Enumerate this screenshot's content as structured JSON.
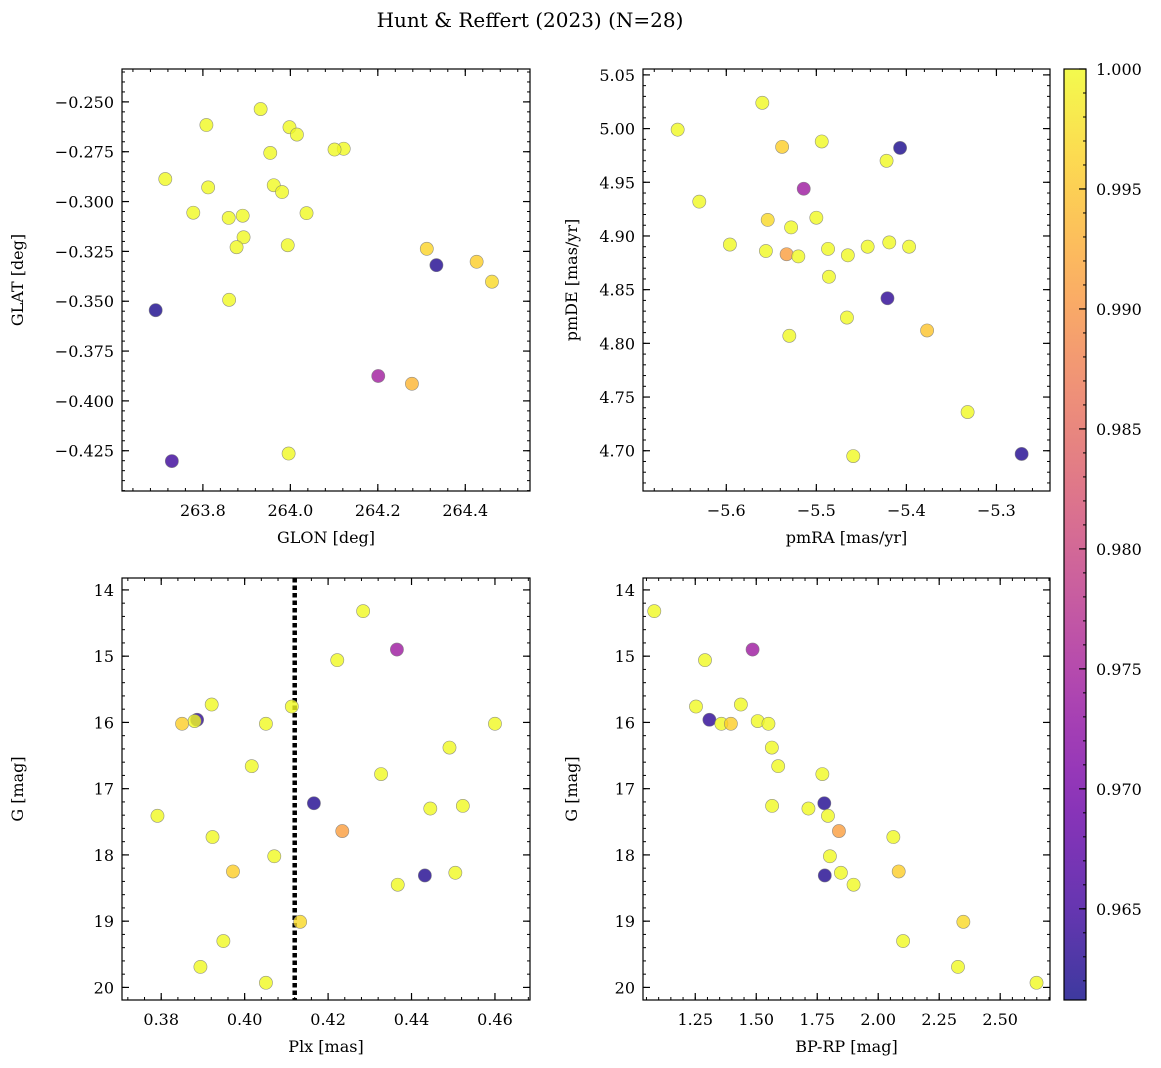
{
  "figure": {
    "title": "Hunt & Reffert (2023) (N=28)"
  },
  "colormap": {
    "name": "plasma",
    "stops": [
      "#0d0887",
      "#46039f",
      "#7201a8",
      "#9c179e",
      "#bd3786",
      "#d8576b",
      "#ed7953",
      "#fb9f3a",
      "#fdca26",
      "#f0f921"
    ],
    "alpha": 0.8,
    "vmin": 0.9612,
    "vmax": 1.0,
    "ticks": [
      0.965,
      0.97,
      0.975,
      0.98,
      0.985,
      0.99,
      0.995,
      1.0
    ],
    "tick_labels": [
      "0.965",
      "0.970",
      "0.975",
      "0.980",
      "0.985",
      "0.990",
      "0.995",
      "1.000"
    ]
  },
  "chart_data": [
    {
      "type": "scatter",
      "id": "glon-glat",
      "xlabel": "GLON [deg]",
      "ylabel": "GLAT [deg]",
      "xlim": [
        263.615,
        264.548
      ],
      "ylim": [
        -0.4452,
        -0.2335
      ],
      "invert_y": false,
      "xticks": [
        263.8,
        264.0,
        264.2,
        264.4
      ],
      "xtick_labels": [
        "263.8",
        "264.0",
        "264.2",
        "264.4"
      ],
      "yticks": [
        -0.25,
        -0.275,
        -0.3,
        -0.325,
        -0.35,
        -0.375,
        -0.4,
        -0.425
      ],
      "ytick_labels": [
        "−0.250",
        "−0.275",
        "−0.300",
        "−0.325",
        "−0.350",
        "−0.375",
        "−0.400",
        "−0.425"
      ],
      "points": [
        {
          "x": 263.932,
          "y": -0.2536,
          "c": 1.0
        },
        {
          "x": 263.808,
          "y": -0.2616,
          "c": 1.0
        },
        {
          "x": 263.998,
          "y": -0.2627,
          "c": 1.0
        },
        {
          "x": 264.015,
          "y": -0.2664,
          "c": 1.0
        },
        {
          "x": 264.122,
          "y": -0.2735,
          "c": 1.0
        },
        {
          "x": 264.101,
          "y": -0.2739,
          "c": 1.0
        },
        {
          "x": 263.954,
          "y": -0.2756,
          "c": 1.0
        },
        {
          "x": 263.714,
          "y": -0.2887,
          "c": 1.0
        },
        {
          "x": 263.962,
          "y": -0.2918,
          "c": 1.0
        },
        {
          "x": 263.812,
          "y": -0.2929,
          "c": 1.0
        },
        {
          "x": 263.981,
          "y": -0.2952,
          "c": 1.0
        },
        {
          "x": 263.778,
          "y": -0.3056,
          "c": 1.0
        },
        {
          "x": 264.037,
          "y": -0.3058,
          "c": 1.0
        },
        {
          "x": 263.891,
          "y": -0.3071,
          "c": 1.0
        },
        {
          "x": 263.859,
          "y": -0.3082,
          "c": 1.0
        },
        {
          "x": 263.893,
          "y": -0.3179,
          "c": 1.0
        },
        {
          "x": 263.994,
          "y": -0.3219,
          "c": 1.0
        },
        {
          "x": 263.877,
          "y": -0.3229,
          "c": 1.0
        },
        {
          "x": 264.312,
          "y": -0.3237,
          "c": 0.9965
        },
        {
          "x": 264.334,
          "y": -0.3319,
          "c": 0.9625
        },
        {
          "x": 264.426,
          "y": -0.3302,
          "c": 0.996
        },
        {
          "x": 264.461,
          "y": -0.3402,
          "c": 0.997
        },
        {
          "x": 263.86,
          "y": -0.3493,
          "c": 1.0
        },
        {
          "x": 263.692,
          "y": -0.3545,
          "c": 0.962
        },
        {
          "x": 264.201,
          "y": -0.3875,
          "c": 0.9745
        },
        {
          "x": 264.278,
          "y": -0.3914,
          "c": 0.9935
        },
        {
          "x": 263.996,
          "y": -0.4264,
          "c": 1.0
        },
        {
          "x": 263.729,
          "y": -0.4302,
          "c": 0.9645
        }
      ]
    },
    {
      "type": "scatter",
      "id": "pmra-pmde",
      "xlabel": "pmRA [mas/yr]",
      "ylabel": "pmDE [mas/yr]",
      "xlim": [
        -5.6925,
        -5.2405
      ],
      "ylim": [
        4.6625,
        5.0555
      ],
      "invert_y": false,
      "xticks": [
        -5.6,
        -5.5,
        -5.4,
        -5.3
      ],
      "xtick_labels": [
        "−5.6",
        "−5.5",
        "−5.4",
        "−5.3"
      ],
      "yticks": [
        4.7,
        4.75,
        4.8,
        4.85,
        4.9,
        4.95,
        5.0,
        5.05
      ],
      "ytick_labels": [
        "4.70",
        "4.75",
        "4.80",
        "4.85",
        "4.90",
        "4.95",
        "5.00",
        "5.05"
      ],
      "points": [
        {
          "x": -5.56,
          "y": 5.024,
          "c": 1.0
        },
        {
          "x": -5.654,
          "y": 4.999,
          "c": 1.0
        },
        {
          "x": -5.494,
          "y": 4.988,
          "c": 1.0
        },
        {
          "x": -5.538,
          "y": 4.983,
          "c": 0.996
        },
        {
          "x": -5.407,
          "y": 4.982,
          "c": 0.962
        },
        {
          "x": -5.422,
          "y": 4.97,
          "c": 1.0
        },
        {
          "x": -5.514,
          "y": 4.944,
          "c": 0.974
        },
        {
          "x": -5.63,
          "y": 4.932,
          "c": 1.0
        },
        {
          "x": -5.554,
          "y": 4.915,
          "c": 0.997
        },
        {
          "x": -5.5,
          "y": 4.917,
          "c": 1.0
        },
        {
          "x": -5.528,
          "y": 4.908,
          "c": 1.0
        },
        {
          "x": -5.419,
          "y": 4.894,
          "c": 1.0
        },
        {
          "x": -5.596,
          "y": 4.892,
          "c": 1.0
        },
        {
          "x": -5.397,
          "y": 4.89,
          "c": 1.0
        },
        {
          "x": -5.443,
          "y": 4.89,
          "c": 1.0
        },
        {
          "x": -5.487,
          "y": 4.888,
          "c": 1.0
        },
        {
          "x": -5.556,
          "y": 4.886,
          "c": 1.0
        },
        {
          "x": -5.533,
          "y": 4.883,
          "c": 0.991
        },
        {
          "x": -5.465,
          "y": 4.882,
          "c": 1.0
        },
        {
          "x": -5.52,
          "y": 4.881,
          "c": 1.0
        },
        {
          "x": -5.486,
          "y": 4.862,
          "c": 1.0
        },
        {
          "x": -5.421,
          "y": 4.842,
          "c": 0.9635
        },
        {
          "x": -5.466,
          "y": 4.824,
          "c": 1.0
        },
        {
          "x": -5.377,
          "y": 4.812,
          "c": 0.995
        },
        {
          "x": -5.53,
          "y": 4.807,
          "c": 1.0
        },
        {
          "x": -5.332,
          "y": 4.736,
          "c": 1.0
        },
        {
          "x": -5.272,
          "y": 4.697,
          "c": 0.9625
        },
        {
          "x": -5.459,
          "y": 4.695,
          "c": 1.0
        }
      ]
    },
    {
      "type": "scatter",
      "id": "plx-g",
      "xlabel": "Plx [mas]",
      "ylabel": "G [mag]",
      "xlim": [
        0.3706,
        0.4684
      ],
      "ylim": [
        13.82,
        20.19
      ],
      "invert_y": true,
      "vline": {
        "x": 0.412,
        "style": "dotted"
      },
      "xticks": [
        0.38,
        0.4,
        0.42,
        0.44,
        0.46
      ],
      "xtick_labels": [
        "0.38",
        "0.40",
        "0.42",
        "0.44",
        "0.46"
      ],
      "yticks": [
        14,
        15,
        16,
        17,
        18,
        19,
        20
      ],
      "ytick_labels": [
        "14",
        "15",
        "16",
        "17",
        "18",
        "19",
        "20"
      ],
      "points": [
        {
          "x": 0.4284,
          "y": 14.32,
          "c": 1.0
        },
        {
          "x": 0.4365,
          "y": 14.9,
          "c": 0.974
        },
        {
          "x": 0.4222,
          "y": 15.06,
          "c": 1.0
        },
        {
          "x": 0.3921,
          "y": 15.73,
          "c": 1.0
        },
        {
          "x": 0.4113,
          "y": 15.76,
          "c": 1.0
        },
        {
          "x": 0.3886,
          "y": 15.96,
          "c": 0.9635
        },
        {
          "x": 0.388,
          "y": 15.98,
          "c": 1.0
        },
        {
          "x": 0.385,
          "y": 16.02,
          "c": 0.996
        },
        {
          "x": 0.4051,
          "y": 16.02,
          "c": 1.0
        },
        {
          "x": 0.46,
          "y": 16.02,
          "c": 1.0
        },
        {
          "x": 0.4491,
          "y": 16.38,
          "c": 1.0
        },
        {
          "x": 0.4017,
          "y": 16.66,
          "c": 1.0
        },
        {
          "x": 0.4327,
          "y": 16.78,
          "c": 1.0
        },
        {
          "x": 0.4166,
          "y": 17.22,
          "c": 0.9625
        },
        {
          "x": 0.4523,
          "y": 17.26,
          "c": 1.0
        },
        {
          "x": 0.4445,
          "y": 17.3,
          "c": 1.0
        },
        {
          "x": 0.3791,
          "y": 17.41,
          "c": 1.0
        },
        {
          "x": 0.4234,
          "y": 17.64,
          "c": 0.991
        },
        {
          "x": 0.3923,
          "y": 17.73,
          "c": 1.0
        },
        {
          "x": 0.4071,
          "y": 18.02,
          "c": 1.0
        },
        {
          "x": 0.3972,
          "y": 18.25,
          "c": 0.996
        },
        {
          "x": 0.4505,
          "y": 18.27,
          "c": 1.0
        },
        {
          "x": 0.4432,
          "y": 18.31,
          "c": 0.9625
        },
        {
          "x": 0.4367,
          "y": 18.45,
          "c": 1.0
        },
        {
          "x": 0.4133,
          "y": 19.01,
          "c": 0.997
        },
        {
          "x": 0.3949,
          "y": 19.3,
          "c": 1.0
        },
        {
          "x": 0.3894,
          "y": 19.69,
          "c": 1.0
        },
        {
          "x": 0.4051,
          "y": 19.93,
          "c": 1.0
        }
      ]
    },
    {
      "type": "scatter",
      "id": "bprp-g",
      "xlabel": "BP-RP [mag]",
      "ylabel": "G [mag]",
      "xlim": [
        1.0358,
        2.7042
      ],
      "ylim": [
        13.82,
        20.19
      ],
      "invert_y": true,
      "xticks": [
        1.25,
        1.5,
        1.75,
        2.0,
        2.25,
        2.5
      ],
      "xtick_labels": [
        "1.25",
        "1.50",
        "1.75",
        "2.00",
        "2.25",
        "2.50"
      ],
      "yticks": [
        14,
        15,
        16,
        17,
        18,
        19,
        20
      ],
      "ytick_labels": [
        "14",
        "15",
        "16",
        "17",
        "18",
        "19",
        "20"
      ],
      "points": [
        {
          "x": 1.082,
          "y": 14.32,
          "c": 1.0
        },
        {
          "x": 1.485,
          "y": 14.9,
          "c": 0.974
        },
        {
          "x": 1.29,
          "y": 15.06,
          "c": 1.0
        },
        {
          "x": 1.253,
          "y": 15.76,
          "c": 1.0
        },
        {
          "x": 1.437,
          "y": 15.73,
          "c": 1.0
        },
        {
          "x": 1.308,
          "y": 15.96,
          "c": 0.9635
        },
        {
          "x": 1.506,
          "y": 15.98,
          "c": 1.0
        },
        {
          "x": 1.357,
          "y": 16.02,
          "c": 1.0
        },
        {
          "x": 1.396,
          "y": 16.02,
          "c": 0.996
        },
        {
          "x": 1.55,
          "y": 16.02,
          "c": 1.0
        },
        {
          "x": 1.564,
          "y": 16.38,
          "c": 1.0
        },
        {
          "x": 1.59,
          "y": 16.66,
          "c": 1.0
        },
        {
          "x": 1.771,
          "y": 16.78,
          "c": 1.0
        },
        {
          "x": 1.779,
          "y": 17.22,
          "c": 0.9625
        },
        {
          "x": 1.565,
          "y": 17.26,
          "c": 1.0
        },
        {
          "x": 1.714,
          "y": 17.3,
          "c": 1.0
        },
        {
          "x": 1.794,
          "y": 17.41,
          "c": 1.0
        },
        {
          "x": 1.839,
          "y": 17.64,
          "c": 0.991
        },
        {
          "x": 2.062,
          "y": 17.73,
          "c": 1.0
        },
        {
          "x": 1.802,
          "y": 18.02,
          "c": 1.0
        },
        {
          "x": 2.084,
          "y": 18.25,
          "c": 0.996
        },
        {
          "x": 1.847,
          "y": 18.27,
          "c": 1.0
        },
        {
          "x": 1.781,
          "y": 18.31,
          "c": 0.9625
        },
        {
          "x": 1.899,
          "y": 18.45,
          "c": 1.0
        },
        {
          "x": 2.349,
          "y": 19.01,
          "c": 0.997
        },
        {
          "x": 2.102,
          "y": 19.3,
          "c": 1.0
        },
        {
          "x": 2.327,
          "y": 19.69,
          "c": 1.0
        },
        {
          "x": 2.649,
          "y": 19.93,
          "c": 1.0
        }
      ]
    }
  ]
}
